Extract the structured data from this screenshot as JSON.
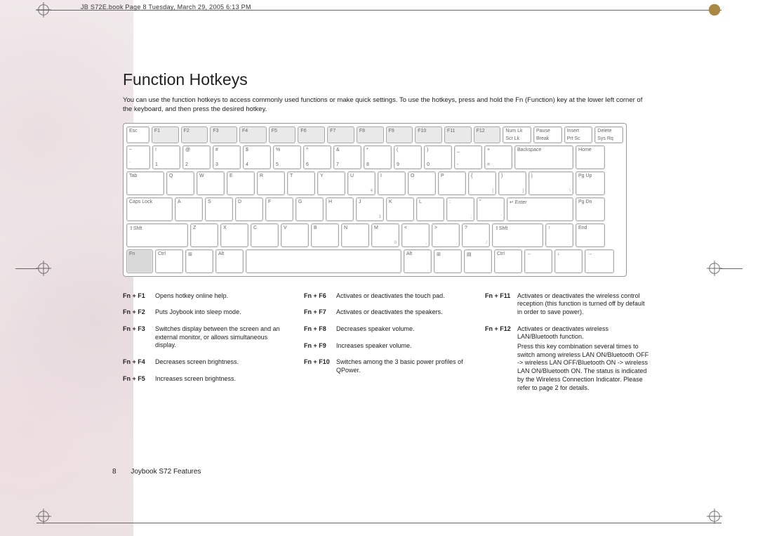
{
  "doc_header": "JB S72E.book  Page 8  Tuesday, March 29, 2005  6:13 PM",
  "title": "Function Hotkeys",
  "intro": "You can use the function hotkeys to access commonly used functions or make quick settings. To use the hotkeys, press and hold the Fn (Function) key at the lower left corner of the keyboard, and then press the desired hotkey.",
  "footer_page": "8",
  "footer_title": "Joybook S72 Features",
  "keyboard": {
    "row_func": [
      "Esc",
      "F1",
      "F2",
      "F3",
      "F4",
      "F5",
      "F6",
      "F7",
      "F8",
      "F9",
      "F10",
      "F11",
      "F12",
      "Num Lk\nScr Lk",
      "Pause\nBreak",
      "Insert\nPrt Sc",
      "Delete\nSys Rq"
    ],
    "row1_top": [
      "~",
      "!",
      "@",
      "#",
      "$",
      "%",
      "^",
      "&",
      "*",
      "(",
      ")",
      "_",
      "+",
      "Backspace",
      "Home"
    ],
    "row1_bot": [
      "`",
      "1",
      "2",
      "3",
      "4",
      "5",
      "6",
      "7",
      "8",
      "9",
      "0",
      "-",
      "=",
      "",
      ""
    ],
    "row2": [
      "Tab",
      "Q",
      "W",
      "E",
      "R",
      "T",
      "Y",
      "U",
      "I",
      "O",
      "P",
      "{",
      "}",
      "|",
      "Pg Up"
    ],
    "row2_br": [
      "",
      "",
      "",
      "",
      "",
      "",
      "",
      "4",
      "",
      "",
      "",
      "[",
      "]",
      "\\",
      ""
    ],
    "row3": [
      "Caps Lock",
      "A",
      "S",
      "D",
      "F",
      "G",
      "H",
      "J",
      "K",
      "L",
      ":",
      "\"",
      "↵ Enter",
      "Pg Dn"
    ],
    "row3_br": [
      "",
      "",
      "",
      "",
      "",
      "",
      "",
      "1",
      "",
      "",
      ";",
      "'",
      "",
      ""
    ],
    "row4": [
      "⇧Shft",
      "Z",
      "X",
      "C",
      "V",
      "B",
      "N",
      "M",
      "<",
      ">",
      "?",
      "⇧Shft",
      "↑",
      "End"
    ],
    "row4_br": [
      "",
      "",
      "",
      "",
      "",
      "",
      "",
      "0",
      ",",
      ".",
      "/",
      "",
      "",
      ""
    ],
    "row5": [
      "Fn",
      "Ctrl",
      "⊞",
      "Alt",
      "",
      "Alt",
      "⊞",
      "▤",
      "Ctrl",
      "←",
      "↓",
      "→"
    ]
  },
  "hotkeys": {
    "col1": [
      {
        "k": "Fn + F1",
        "d": "Opens hotkey online help."
      },
      {
        "k": "Fn + F2",
        "d": "Puts Joybook into sleep mode."
      },
      {
        "k": "Fn + F3",
        "d": "Switches display between the screen and an external monitor, or allows simultaneous display."
      },
      {
        "k": "Fn + F4",
        "d": "Decreases screen brightness."
      },
      {
        "k": "Fn + F5",
        "d": "Increases screen brightness."
      }
    ],
    "col2": [
      {
        "k": "Fn + F6",
        "d": "Activates or deactivates the touch pad."
      },
      {
        "k": "Fn + F7",
        "d": "Activates or deactivates the speakers."
      },
      {
        "k": "Fn + F8",
        "d": "Decreases speaker volume."
      },
      {
        "k": "Fn + F9",
        "d": "Increases speaker volume."
      },
      {
        "k": "Fn + F10",
        "d": "Switches among the 3 basic power profiles of QPower."
      }
    ],
    "col3": [
      {
        "k": "Fn + F11",
        "d": "Activates or deactivates the wireless control reception (this function is turned off by default in order to save power)."
      },
      {
        "k": "Fn + F12",
        "d": "Activates or deactivates wireless LAN/Bluetooth function.",
        "extra": "Press this key combination several times to switch among wireless LAN ON/Bluetooth OFF -> wireless LAN OFF/Bluetooth ON -> wireless LAN ON/Bluetooth ON.\nThe status is indicated by the Wireless Connection Indicator. Please refer to page 2 for details."
      }
    ]
  },
  "colors": {
    "text": "#222222",
    "rule": "#666666",
    "key_border": "#aaaaaa",
    "fn_highlight": "#d8d8d8",
    "func_row_highlight": "#e9e9e9"
  }
}
